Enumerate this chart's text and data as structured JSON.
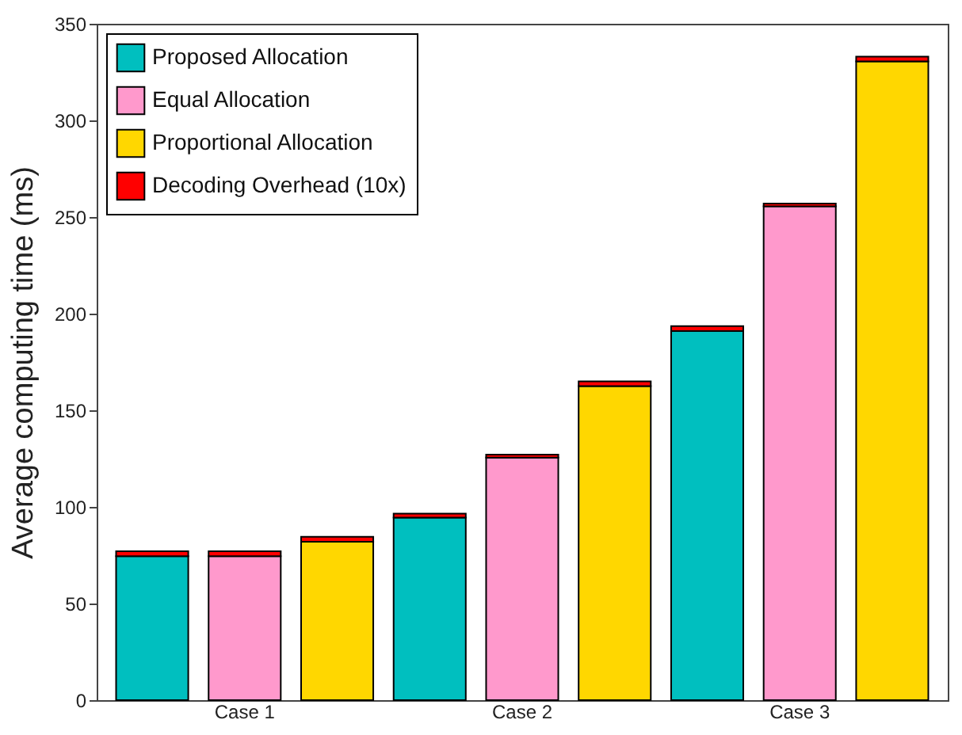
{
  "chart_data": {
    "type": "bar",
    "stacked": true,
    "ylabel": "Average computing time (ms)",
    "categories": [
      null,
      "Case 1",
      null,
      null,
      "Case 2",
      null,
      null,
      "Case 3",
      null
    ],
    "series": [
      {
        "name": "Proposed Allocation",
        "color": "#00bfbf",
        "values": [
          74.5,
          null,
          null,
          94.5,
          null,
          null,
          191,
          null,
          null
        ]
      },
      {
        "name": "Equal Allocation",
        "color": "#ff99cc",
        "values": [
          null,
          74.5,
          null,
          null,
          125.5,
          null,
          null,
          255.5,
          null
        ]
      },
      {
        "name": "Proportional Allocation",
        "color": "#ffd700",
        "values": [
          null,
          null,
          82,
          null,
          null,
          162.5,
          null,
          null,
          330.5
        ]
      },
      {
        "name": "Decoding Overhead (10x)",
        "color": "#ff0000",
        "values": [
          2.5,
          2.5,
          2.5,
          2,
          1.5,
          2.5,
          2.5,
          1.5,
          2.5
        ]
      }
    ],
    "ylim": [
      0,
      350
    ],
    "yticks": [
      0,
      50,
      100,
      150,
      200,
      250,
      300,
      350
    ],
    "legend": "top left"
  }
}
